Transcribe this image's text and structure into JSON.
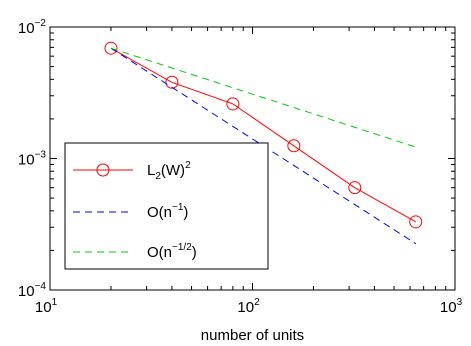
{
  "chart_data": {
    "type": "line",
    "xlabel": "number of units",
    "ylabel": "",
    "xscale": "log",
    "yscale": "log",
    "xlim": [
      10,
      1000
    ],
    "ylim": [
      0.0001,
      0.01
    ],
    "grid": false,
    "legend_position": "bottom-left",
    "x_ticks": [
      {
        "value": 10,
        "base": "10",
        "exp": "1"
      },
      {
        "value": 100,
        "base": "10",
        "exp": "2"
      },
      {
        "value": 1000,
        "base": "10",
        "exp": "3"
      }
    ],
    "y_ticks": [
      {
        "value": 0.0001,
        "base": "10",
        "exp": "−4"
      },
      {
        "value": 0.001,
        "base": "10",
        "exp": "−3"
      },
      {
        "value": 0.01,
        "base": "10",
        "exp": "−2"
      }
    ],
    "series": [
      {
        "label_parts": {
          "main": "L",
          "sub": "2",
          "rest": "(W)",
          "sup": "2"
        },
        "color": "#ff0000",
        "style": "solid",
        "marker": "circle",
        "x": [
          20,
          40,
          80,
          160,
          320,
          640
        ],
        "y": [
          0.0069,
          0.0038,
          0.0026,
          0.00125,
          0.0006,
          0.00033
        ]
      },
      {
        "label_parts": {
          "main": "O(n",
          "sup": "−1",
          "rest": ")"
        },
        "color": "#0000ff",
        "style": "dashed",
        "marker": "none",
        "x": [
          20,
          640
        ],
        "y": [
          0.0069,
          0.000225
        ]
      },
      {
        "label_parts": {
          "main": "O(n",
          "sup": "−1/2",
          "rest": ")"
        },
        "color": "#00cc00",
        "style": "dashed",
        "marker": "none",
        "x": [
          20,
          640
        ],
        "y": [
          0.0069,
          0.00122
        ]
      }
    ]
  }
}
